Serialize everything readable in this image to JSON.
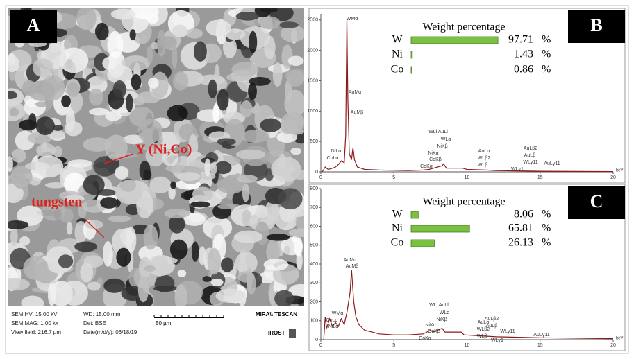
{
  "sem": {
    "label": "A",
    "annotations": [
      "Y (Ni,Co)",
      "tungsten"
    ],
    "info": [
      "SEM HV: 15.00 kV",
      "WD: 15.00 mm",
      "SEM MAG: 1.00 kx",
      "Det: BSE",
      "View field: 216.7 µm",
      "Date(m/d/y): 06/18/19"
    ],
    "scale_bar": "50 µm",
    "brand": "MIRA\\\\ TESCAN",
    "lab": "IROST"
  },
  "chart_data": [
    {
      "type": "line",
      "label": "B",
      "x_unit": "keV",
      "color": "#8b1a1a",
      "x": [
        0.1,
        0.3,
        0.5,
        0.8,
        1.0,
        1.2,
        1.4,
        1.6,
        1.7,
        1.78,
        1.85,
        1.95,
        2.1,
        2.2,
        2.3,
        2.5,
        3,
        4,
        5,
        6,
        7,
        7.4,
        8.3,
        8.4,
        8.6,
        9.7,
        10,
        11.3,
        12,
        15,
        20
      ],
      "values": [
        0,
        80,
        40,
        60,
        80,
        120,
        180,
        150,
        600,
        2500,
        1200,
        300,
        200,
        400,
        200,
        80,
        40,
        30,
        25,
        20,
        30,
        40,
        100,
        130,
        60,
        60,
        40,
        30,
        20,
        10,
        5
      ],
      "xlim": [
        0,
        20
      ],
      "xticks": [
        0,
        5,
        10,
        15,
        20
      ],
      "ylim": [
        0,
        2600
      ],
      "yticks": [
        0,
        500,
        1000,
        1500,
        2000,
        2500
      ],
      "annotations": [
        "WMα",
        "AuMα",
        "AuMβ",
        "NiLα",
        "CoLα",
        "WLl AuLl",
        "WLα",
        "NiKβ",
        "NiKα",
        "CoKβ",
        "CoKα",
        "AuLα",
        "WLβ2",
        "WLβ",
        "AuLβ2",
        "AuLβ",
        "WLγ11",
        "WLγ1",
        "AuLγ11"
      ]
    },
    {
      "type": "hbar",
      "title": "Weight percentage",
      "categories": [
        "W",
        "Ni",
        "Co"
      ],
      "values": [
        97.71,
        1.43,
        0.86
      ],
      "unit": "%",
      "color": "#7ac143",
      "xlim": [
        0,
        100
      ]
    },
    {
      "type": "line",
      "label": "C",
      "x_unit": "keV",
      "color": "#8b1a1a",
      "x": [
        0.2,
        0.3,
        0.4,
        0.6,
        0.8,
        1.0,
        1.2,
        1.4,
        1.6,
        1.8,
        2.0,
        2.1,
        2.25,
        2.4,
        2.6,
        3,
        3.5,
        4,
        5,
        6,
        7,
        7.5,
        7.7,
        8.3,
        8.5,
        9.6,
        9.8,
        12,
        15,
        20
      ],
      "values": [
        0,
        120,
        60,
        110,
        70,
        90,
        70,
        110,
        80,
        150,
        250,
        370,
        200,
        120,
        80,
        50,
        40,
        30,
        25,
        25,
        30,
        50,
        40,
        60,
        40,
        40,
        25,
        15,
        10,
        5
      ],
      "xlim": [
        0,
        20
      ],
      "xticks": [
        0,
        5,
        10,
        15,
        20
      ],
      "ylim": [
        0,
        800
      ],
      "yticks": [
        0,
        100,
        200,
        300,
        400,
        500,
        600,
        700,
        800
      ],
      "annotations": [
        "AuMα",
        "AuMβ",
        "WMα",
        "CoLα",
        "NiLα",
        "WLl AuLl",
        "WLα",
        "NiKβ",
        "NiKα",
        "CoKβ",
        "CoKα",
        "AuLα",
        "WLβ2",
        "WLβ",
        "AuLβ2",
        "AuLβ",
        "WLγ11",
        "WLγ1",
        "AuLγ11"
      ]
    },
    {
      "type": "hbar",
      "title": "Weight percentage",
      "categories": [
        "W",
        "Ni",
        "Co"
      ],
      "values": [
        8.06,
        65.81,
        26.13
      ],
      "unit": "%",
      "color": "#7ac143",
      "xlim": [
        0,
        100
      ]
    }
  ]
}
